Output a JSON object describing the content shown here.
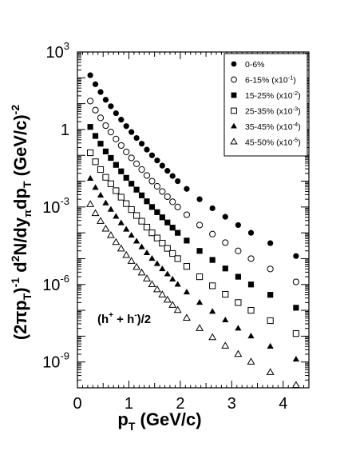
{
  "chart_data": {
    "type": "scatter",
    "title": "",
    "xlabel": "p",
    "xlabel_sub": "T",
    "xlabel_unit": " (GeV/c)",
    "ylabel_parts": {
      "prefix": "(2πp",
      "prefix_sub": "T",
      "prefix_close": ")",
      "prefix_sup": "-1",
      "main": " d",
      "main_sup": "2",
      "mid": "N/dy",
      "mid_sub": "π",
      "dp": "dp",
      "dp_sub": "T",
      "unit": " (GeV/c)",
      "unit_sup": "-2"
    },
    "xlim": [
      0,
      4.5
    ],
    "ylim_log10": [
      -10,
      3
    ],
    "y_scale": "log",
    "x_ticks": [
      0,
      1,
      2,
      3,
      4
    ],
    "y_ticks": [
      {
        "base": "10",
        "exp": "3",
        "value_log10": 3
      },
      {
        "base": "1",
        "exp": "",
        "value_log10": 0
      },
      {
        "base": "10",
        "exp": "-3",
        "value_log10": -3
      },
      {
        "base": "10",
        "exp": "-6",
        "value_log10": -6
      },
      {
        "base": "10",
        "exp": "-9",
        "value_log10": -9
      }
    ],
    "annotation": {
      "text": "(h",
      "sup1": "+",
      "mid": " + h",
      "sup2": "-",
      "end": ")/2"
    },
    "legend_position": "top-right",
    "x": [
      0.25,
      0.35,
      0.45,
      0.55,
      0.65,
      0.75,
      0.85,
      0.95,
      1.05,
      1.15,
      1.25,
      1.35,
      1.45,
      1.55,
      1.65,
      1.75,
      1.85,
      1.95,
      2.125,
      2.375,
      2.625,
      2.875,
      3.125,
      3.375,
      3.75,
      4.25
    ],
    "series": [
      {
        "name": "0-6%",
        "name_sup": "",
        "marker": "filled-circle",
        "values_log10": [
          2.1,
          1.75,
          1.45,
          1.15,
          0.9,
          0.63,
          0.38,
          0.13,
          -0.1,
          -0.33,
          -0.55,
          -0.78,
          -1.0,
          -1.2,
          -1.4,
          -1.6,
          -1.8,
          -2.0,
          -2.3,
          -2.7,
          -3.05,
          -3.38,
          -3.7,
          -4.0,
          -4.4,
          -4.9
        ]
      },
      {
        "name": "6-15% (x10",
        "name_sup": "-1",
        "name_end": ")",
        "marker": "open-circle",
        "values_log10": [
          1.1,
          0.75,
          0.45,
          0.15,
          -0.1,
          -0.37,
          -0.62,
          -0.87,
          -1.1,
          -1.33,
          -1.55,
          -1.78,
          -2.0,
          -2.2,
          -2.4,
          -2.6,
          -2.8,
          -3.0,
          -3.3,
          -3.7,
          -4.05,
          -4.38,
          -4.7,
          -5.0,
          -5.4,
          -5.9
        ]
      },
      {
        "name": "15-25% (x10",
        "name_sup": "-2",
        "name_end": ")",
        "marker": "filled-square",
        "values_log10": [
          0.1,
          -0.25,
          -0.55,
          -0.85,
          -1.1,
          -1.37,
          -1.62,
          -1.87,
          -2.1,
          -2.33,
          -2.55,
          -2.78,
          -3.0,
          -3.2,
          -3.4,
          -3.6,
          -3.8,
          -4.0,
          -4.3,
          -4.7,
          -5.05,
          -5.38,
          -5.7,
          -6.0,
          -6.4,
          -6.9
        ]
      },
      {
        "name": "25-35% (x10",
        "name_sup": "-3",
        "name_end": ")",
        "marker": "open-square",
        "values_log10": [
          -0.9,
          -1.25,
          -1.55,
          -1.85,
          -2.1,
          -2.37,
          -2.62,
          -2.87,
          -3.1,
          -3.33,
          -3.55,
          -3.78,
          -4.0,
          -4.2,
          -4.4,
          -4.6,
          -4.8,
          -5.0,
          -5.3,
          -5.7,
          -6.05,
          -6.38,
          -6.7,
          -7.0,
          -7.4,
          -7.9
        ]
      },
      {
        "name": "35-45% (x10",
        "name_sup": "-4",
        "name_end": ")",
        "marker": "filled-triangle",
        "values_log10": [
          -1.9,
          -2.25,
          -2.55,
          -2.85,
          -3.1,
          -3.37,
          -3.62,
          -3.87,
          -4.1,
          -4.33,
          -4.55,
          -4.78,
          -5.0,
          -5.2,
          -5.4,
          -5.6,
          -5.8,
          -6.0,
          -6.3,
          -6.7,
          -7.05,
          -7.38,
          -7.7,
          -8.0,
          -8.4,
          -8.9
        ]
      },
      {
        "name": "45-50% (x10",
        "name_sup": "-5",
        "name_end": ")",
        "marker": "open-triangle",
        "values_log10": [
          -2.9,
          -3.25,
          -3.55,
          -3.85,
          -4.1,
          -4.37,
          -4.62,
          -4.87,
          -5.1,
          -5.33,
          -5.55,
          -5.78,
          -6.0,
          -6.2,
          -6.4,
          -6.6,
          -6.8,
          -7.0,
          -7.3,
          -7.7,
          -8.05,
          -8.38,
          -8.7,
          -9.0,
          -9.4,
          -9.9
        ]
      }
    ]
  }
}
